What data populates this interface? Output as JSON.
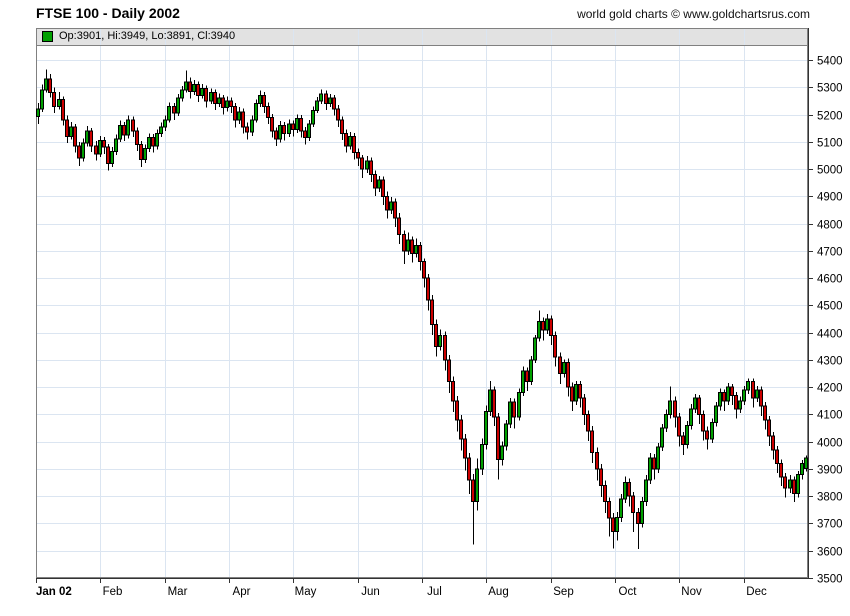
{
  "header": {
    "title": "FTSE 100 - Daily 2002",
    "copyright": "world gold charts © www.goldchartsrus.com"
  },
  "legend": {
    "label": "Op:3901, Hi:3949, Lo:3891, Cl:3940",
    "op": 3901,
    "hi": 3949,
    "lo": 3891,
    "cl": 3940,
    "marker_color": "#00A000"
  },
  "colors": {
    "up": "#00A000",
    "down": "#CC0000",
    "outline": "#000000",
    "grid": "#dbe5f1",
    "frame": "#808080",
    "axis": "#333333",
    "legend_strip_bg": "#e2e2e2",
    "label_text": "#000000"
  },
  "chart_data": {
    "type": "candlestick",
    "title": "FTSE 100 - Daily 2002",
    "xlabel": "",
    "ylabel": "",
    "grid": true,
    "legend_position": "top-left",
    "ylim": [
      3500,
      5455
    ],
    "y_ticks": [
      3500,
      3600,
      3700,
      3800,
      3900,
      4000,
      4100,
      4200,
      4300,
      4400,
      4500,
      4600,
      4700,
      4800,
      4900,
      5000,
      5100,
      5200,
      5300,
      5400
    ],
    "x_ticks": [
      {
        "label": "Jan 02",
        "emphasis": true
      },
      {
        "label": "Feb",
        "emphasis": false
      },
      {
        "label": "Mar",
        "emphasis": false
      },
      {
        "label": "Apr",
        "emphasis": false
      },
      {
        "label": "May",
        "emphasis": false
      },
      {
        "label": "Jun",
        "emphasis": false
      },
      {
        "label": "Jul",
        "emphasis": false
      },
      {
        "label": "Aug",
        "emphasis": false
      },
      {
        "label": "Sep",
        "emphasis": false
      },
      {
        "label": "Oct",
        "emphasis": false
      },
      {
        "label": "Nov",
        "emphasis": false
      },
      {
        "label": "Dec",
        "emphasis": false
      }
    ],
    "candles": [
      [
        5193,
        5242,
        5166,
        5220
      ],
      [
        5220,
        5310,
        5210,
        5290
      ],
      [
        5290,
        5365,
        5280,
        5330
      ],
      [
        5330,
        5348,
        5262,
        5280
      ],
      [
        5280,
        5300,
        5205,
        5230
      ],
      [
        5230,
        5282,
        5218,
        5255
      ],
      [
        5255,
        5266,
        5160,
        5180
      ],
      [
        5180,
        5196,
        5095,
        5120
      ],
      [
        5120,
        5172,
        5108,
        5155
      ],
      [
        5155,
        5166,
        5060,
        5085
      ],
      [
        5085,
        5100,
        5012,
        5040
      ],
      [
        5040,
        5112,
        5028,
        5095
      ],
      [
        5095,
        5158,
        5082,
        5140
      ],
      [
        5140,
        5150,
        5062,
        5085
      ],
      [
        5085,
        5102,
        5032,
        5055
      ],
      [
        5055,
        5122,
        5044,
        5105
      ],
      [
        5105,
        5118,
        5056,
        5080
      ],
      [
        5080,
        5092,
        4995,
        5020
      ],
      [
        5020,
        5080,
        5008,
        5065
      ],
      [
        5065,
        5126,
        5052,
        5110
      ],
      [
        5110,
        5178,
        5100,
        5160
      ],
      [
        5160,
        5172,
        5102,
        5125
      ],
      [
        5125,
        5196,
        5112,
        5180
      ],
      [
        5180,
        5192,
        5118,
        5140
      ],
      [
        5140,
        5152,
        5066,
        5090
      ],
      [
        5090,
        5102,
        5008,
        5035
      ],
      [
        5035,
        5090,
        5022,
        5075
      ],
      [
        5075,
        5130,
        5062,
        5115
      ],
      [
        5115,
        5128,
        5060,
        5085
      ],
      [
        5085,
        5145,
        5072,
        5130
      ],
      [
        5130,
        5170,
        5118,
        5155
      ],
      [
        5155,
        5196,
        5140,
        5180
      ],
      [
        5180,
        5245,
        5170,
        5230
      ],
      [
        5230,
        5242,
        5180,
        5205
      ],
      [
        5205,
        5275,
        5195,
        5260
      ],
      [
        5260,
        5305,
        5248,
        5290
      ],
      [
        5290,
        5362,
        5280,
        5320
      ],
      [
        5320,
        5335,
        5258,
        5285
      ],
      [
        5285,
        5326,
        5272,
        5310
      ],
      [
        5310,
        5322,
        5246,
        5270
      ],
      [
        5270,
        5312,
        5258,
        5295
      ],
      [
        5295,
        5306,
        5226,
        5250
      ],
      [
        5250,
        5296,
        5238,
        5280
      ],
      [
        5280,
        5292,
        5216,
        5240
      ],
      [
        5240,
        5278,
        5228,
        5260
      ],
      [
        5260,
        5272,
        5200,
        5225
      ],
      [
        5225,
        5266,
        5212,
        5250
      ],
      [
        5250,
        5262,
        5205,
        5230
      ],
      [
        5230,
        5242,
        5152,
        5180
      ],
      [
        5180,
        5228,
        5166,
        5210
      ],
      [
        5210,
        5222,
        5130,
        5155
      ],
      [
        5155,
        5170,
        5108,
        5135
      ],
      [
        5135,
        5196,
        5122,
        5180
      ],
      [
        5180,
        5256,
        5170,
        5240
      ],
      [
        5240,
        5288,
        5228,
        5270
      ],
      [
        5270,
        5282,
        5205,
        5230
      ],
      [
        5230,
        5244,
        5165,
        5190
      ],
      [
        5190,
        5202,
        5116,
        5140
      ],
      [
        5140,
        5152,
        5085,
        5110
      ],
      [
        5110,
        5176,
        5098,
        5160
      ],
      [
        5160,
        5172,
        5105,
        5130
      ],
      [
        5130,
        5182,
        5118,
        5165
      ],
      [
        5165,
        5178,
        5120,
        5145
      ],
      [
        5145,
        5200,
        5132,
        5185
      ],
      [
        5185,
        5198,
        5115,
        5140
      ],
      [
        5140,
        5155,
        5090,
        5115
      ],
      [
        5115,
        5180,
        5102,
        5165
      ],
      [
        5165,
        5230,
        5155,
        5215
      ],
      [
        5215,
        5265,
        5205,
        5250
      ],
      [
        5250,
        5292,
        5238,
        5275
      ],
      [
        5275,
        5288,
        5216,
        5240
      ],
      [
        5240,
        5276,
        5228,
        5260
      ],
      [
        5260,
        5272,
        5196,
        5220
      ],
      [
        5220,
        5235,
        5155,
        5180
      ],
      [
        5180,
        5192,
        5106,
        5130
      ],
      [
        5130,
        5145,
        5060,
        5085
      ],
      [
        5085,
        5136,
        5072,
        5120
      ],
      [
        5120,
        5132,
        5035,
        5060
      ],
      [
        5060,
        5075,
        5012,
        5040
      ],
      [
        5040,
        5052,
        4968,
        5000
      ],
      [
        5000,
        5048,
        4985,
        5030
      ],
      [
        5030,
        5042,
        4952,
        4980
      ],
      [
        4980,
        4995,
        4902,
        4930
      ],
      [
        4930,
        4975,
        4915,
        4960
      ],
      [
        4960,
        4972,
        4868,
        4900
      ],
      [
        4900,
        4918,
        4818,
        4850
      ],
      [
        4850,
        4898,
        4835,
        4880
      ],
      [
        4880,
        4892,
        4788,
        4820
      ],
      [
        4820,
        4838,
        4725,
        4760
      ],
      [
        4760,
        4775,
        4652,
        4700
      ],
      [
        4700,
        4768,
        4685,
        4740
      ],
      [
        4740,
        4752,
        4658,
        4690
      ],
      [
        4690,
        4745,
        4675,
        4720
      ],
      [
        4720,
        4732,
        4628,
        4660
      ],
      [
        4660,
        4672,
        4565,
        4600
      ],
      [
        4600,
        4615,
        4482,
        4520
      ],
      [
        4520,
        4538,
        4392,
        4430
      ],
      [
        4430,
        4448,
        4312,
        4350
      ],
      [
        4350,
        4412,
        4335,
        4390
      ],
      [
        4390,
        4405,
        4262,
        4300
      ],
      [
        4300,
        4318,
        4178,
        4220
      ],
      [
        4220,
        4240,
        4108,
        4150
      ],
      [
        4150,
        4168,
        4038,
        4080
      ],
      [
        4080,
        4098,
        3968,
        4010
      ],
      [
        4010,
        4028,
        3895,
        3940
      ],
      [
        3940,
        3958,
        3808,
        3860
      ],
      [
        3860,
        3882,
        3622,
        3780
      ],
      [
        3780,
        3938,
        3748,
        3900
      ],
      [
        3900,
        4012,
        3878,
        3990
      ],
      [
        3990,
        4132,
        3972,
        4110
      ],
      [
        4110,
        4222,
        4095,
        4190
      ],
      [
        4190,
        4202,
        4058,
        4090
      ],
      [
        4090,
        4105,
        3862,
        3935
      ],
      [
        3935,
        4000,
        3912,
        3985
      ],
      [
        3985,
        4080,
        3968,
        4065
      ],
      [
        4065,
        4160,
        4050,
        4145
      ],
      [
        4145,
        4158,
        4048,
        4090
      ],
      [
        4090,
        4195,
        4078,
        4180
      ],
      [
        4180,
        4275,
        4168,
        4260
      ],
      [
        4260,
        4272,
        4185,
        4220
      ],
      [
        4220,
        4315,
        4208,
        4300
      ],
      [
        4300,
        4392,
        4288,
        4380
      ],
      [
        4380,
        4482,
        4368,
        4440
      ],
      [
        4440,
        4455,
        4372,
        4410
      ],
      [
        4410,
        4468,
        4395,
        4450
      ],
      [
        4450,
        4462,
        4355,
        4390
      ],
      [
        4390,
        4405,
        4275,
        4310
      ],
      [
        4310,
        4328,
        4212,
        4250
      ],
      [
        4250,
        4302,
        4235,
        4290
      ],
      [
        4290,
        4305,
        4165,
        4200
      ],
      [
        4200,
        4218,
        4112,
        4150
      ],
      [
        4150,
        4222,
        4135,
        4210
      ],
      [
        4210,
        4222,
        4125,
        4160
      ],
      [
        4160,
        4175,
        4062,
        4100
      ],
      [
        4100,
        4115,
        4002,
        4040
      ],
      [
        4040,
        4058,
        3922,
        3960
      ],
      [
        3960,
        3978,
        3858,
        3900
      ],
      [
        3900,
        3918,
        3798,
        3840
      ],
      [
        3840,
        3858,
        3738,
        3780
      ],
      [
        3780,
        3795,
        3652,
        3720
      ],
      [
        3720,
        3738,
        3608,
        3670
      ],
      [
        3670,
        3742,
        3638,
        3722
      ],
      [
        3722,
        3808,
        3705,
        3790
      ],
      [
        3790,
        3872,
        3775,
        3850
      ],
      [
        3850,
        3865,
        3762,
        3800
      ],
      [
        3800,
        3815,
        3668,
        3740
      ],
      [
        3740,
        3756,
        3606,
        3700
      ],
      [
        3700,
        3798,
        3685,
        3780
      ],
      [
        3780,
        3878,
        3765,
        3860
      ],
      [
        3860,
        3958,
        3845,
        3940
      ],
      [
        3940,
        3955,
        3862,
        3900
      ],
      [
        3900,
        3996,
        3885,
        3980
      ],
      [
        3980,
        4065,
        3965,
        4050
      ],
      [
        4050,
        4118,
        4035,
        4100
      ],
      [
        4100,
        4202,
        4085,
        4150
      ],
      [
        4150,
        4165,
        4052,
        4090
      ],
      [
        4090,
        4105,
        3982,
        4020
      ],
      [
        4020,
        4035,
        3952,
        3990
      ],
      [
        3990,
        4075,
        3975,
        4060
      ],
      [
        4060,
        4138,
        4045,
        4120
      ],
      [
        4120,
        4175,
        4105,
        4160
      ],
      [
        4160,
        4172,
        4065,
        4100
      ],
      [
        4100,
        4115,
        4005,
        4040
      ],
      [
        4040,
        4056,
        3972,
        4010
      ],
      [
        4010,
        4085,
        3995,
        4070
      ],
      [
        4070,
        4146,
        4055,
        4130
      ],
      [
        4130,
        4195,
        4115,
        4180
      ],
      [
        4180,
        4192,
        4112,
        4150
      ],
      [
        4150,
        4215,
        4135,
        4200
      ],
      [
        4200,
        4212,
        4135,
        4170
      ],
      [
        4170,
        4182,
        4085,
        4120
      ],
      [
        4120,
        4165,
        4105,
        4150
      ],
      [
        4150,
        4205,
        4135,
        4190
      ],
      [
        4190,
        4232,
        4175,
        4220
      ],
      [
        4220,
        4232,
        4125,
        4160
      ],
      [
        4160,
        4205,
        4145,
        4190
      ],
      [
        4190,
        4202,
        4095,
        4130
      ],
      [
        4130,
        4145,
        4045,
        4080
      ],
      [
        4080,
        4095,
        3985,
        4020
      ],
      [
        4020,
        4035,
        3935,
        3970
      ],
      [
        3970,
        3985,
        3885,
        3920
      ],
      [
        3920,
        3935,
        3838,
        3870
      ],
      [
        3870,
        3885,
        3795,
        3830
      ],
      [
        3830,
        3878,
        3812,
        3860
      ],
      [
        3860,
        3872,
        3778,
        3810
      ],
      [
        3810,
        3892,
        3795,
        3880
      ],
      [
        3880,
        3932,
        3862,
        3920
      ],
      [
        3901,
        3949,
        3891,
        3940
      ]
    ]
  }
}
